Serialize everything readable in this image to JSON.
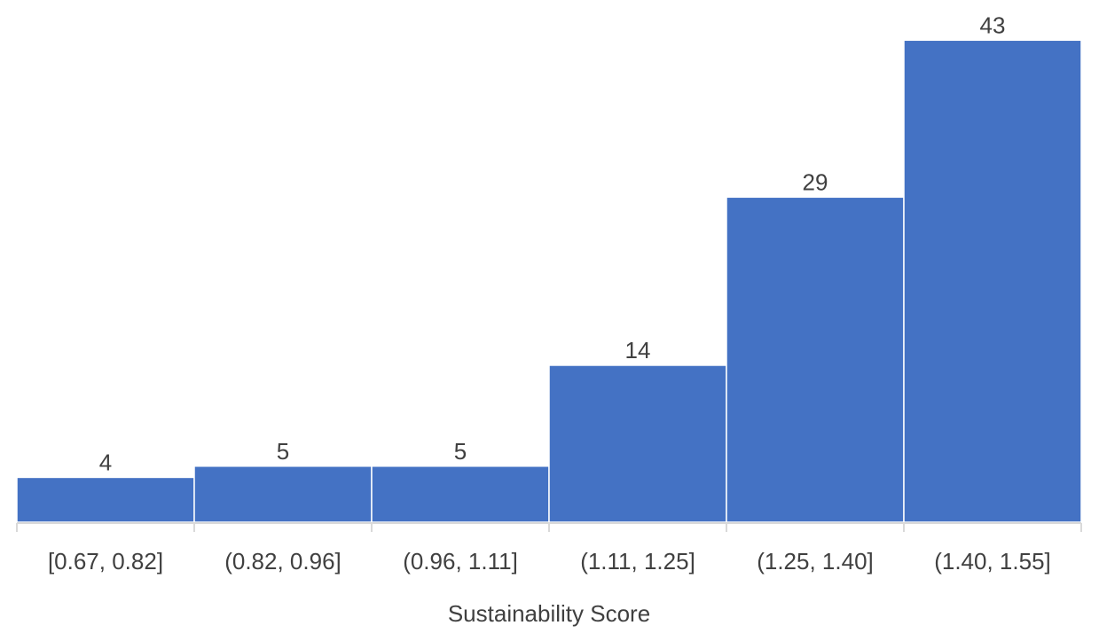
{
  "chart_data": {
    "type": "bar",
    "subtype": "histogram",
    "title": "",
    "xlabel": "Sustainability Score",
    "ylabel": "",
    "categories": [
      "[0.67, 0.82]",
      "(0.82, 0.96]",
      "(0.96, 1.11]",
      "(1.11, 1.25]",
      "(1.25, 1.40]",
      "(1.40, 1.55]"
    ],
    "values": [
      4,
      5,
      5,
      14,
      29,
      43
    ],
    "ylim": [
      0,
      45
    ],
    "grid": false,
    "legend": "none",
    "bar_color": "#4472C4",
    "text_color": "#404040",
    "axis_color": "#D9D9D9"
  }
}
